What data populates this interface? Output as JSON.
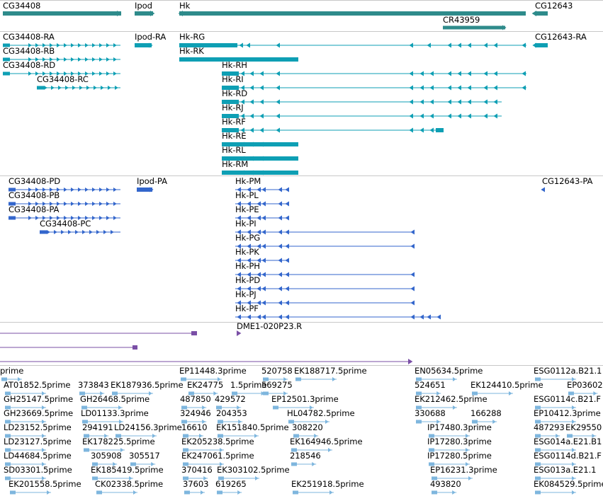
{
  "colors": {
    "gene": "#2e8b8b",
    "rna": "#0e9fb4",
    "protein": "#3366cc",
    "clone": "#7a4fa6",
    "est": "#7eb6de",
    "separator": "#c8c8c8"
  },
  "tracks": {
    "genes": [
      {
        "name": "CG34408",
        "label": "CG34408"
      },
      {
        "name": "Ipod",
        "label": "Ipod"
      },
      {
        "name": "Hk",
        "label": "Hk"
      },
      {
        "name": "CG12643",
        "label": "CG12643"
      },
      {
        "name": "CR43959",
        "label": "CR43959"
      }
    ],
    "transcripts": [
      {
        "label": "CG34408-RA"
      },
      {
        "label": "CG34408-RB"
      },
      {
        "label": "CG34408-RD"
      },
      {
        "label": "CG34408-RC"
      },
      {
        "label": "Ipod-RA"
      },
      {
        "label": "Hk-RG"
      },
      {
        "label": "Hk-RK"
      },
      {
        "label": "Hk-RH"
      },
      {
        "label": "Hk-RI"
      },
      {
        "label": "Hk-RD"
      },
      {
        "label": "Hk-RJ"
      },
      {
        "label": "Hk-RF"
      },
      {
        "label": "Hk-RE"
      },
      {
        "label": "Hk-RL"
      },
      {
        "label": "Hk-RM"
      },
      {
        "label": "CG12643-RA"
      }
    ],
    "proteins": [
      {
        "label": "CG34408-PD"
      },
      {
        "label": "CG34408-PB"
      },
      {
        "label": "CG34408-PA"
      },
      {
        "label": "CG34408-PC"
      },
      {
        "label": "Ipod-PA"
      },
      {
        "label": "Hk-PM"
      },
      {
        "label": "Hk-PL"
      },
      {
        "label": "Hk-PE"
      },
      {
        "label": "Hk-PI"
      },
      {
        "label": "Hk-PG"
      },
      {
        "label": "Hk-PK"
      },
      {
        "label": "Hk-PH"
      },
      {
        "label": "Hk-PD"
      },
      {
        "label": "Hk-PJ"
      },
      {
        "label": "Hk-PF"
      },
      {
        "label": "CG12643-PA"
      }
    ],
    "clones": [
      {
        "label": "DME1-020P23.R"
      }
    ],
    "ests": [
      "prime",
      "EP11448.3prime",
      "520758",
      "EK188717.5prime",
      "EN05634.5prime",
      "ESG0112a.B21.1",
      "AT01852.5prime",
      "373843",
      "EK187936.5prime",
      "EK24775",
      "1.5prime",
      "569275",
      "524651",
      "EK124410.5prime",
      "EP03602",
      "GH25147.5prime",
      "GH26468.5prime",
      "487850",
      "429572",
      "EP12501.3prime",
      "EK212462.5prime",
      "ESG0114c.B21.F",
      "GH23669.5prime",
      "LD01133.3prime",
      "324946",
      "204353",
      "HL04782.5prime",
      "330688",
      "166288",
      "EP10412.3prime",
      "LD23152.5prime",
      "294191",
      "LD24156.3prime",
      "16610",
      "EK151840.5prime",
      "308220",
      "IP17480.3prime",
      "487293",
      "EK29550",
      "LD23127.5prime",
      "EK178225.5prime",
      "EK205238.5prime",
      "EK164946.5prime",
      "IP17280.3prime",
      "ESG014a.E21.B1",
      "LD44684.5prime",
      "305908",
      "305517",
      "EK247061.5prime",
      "218546",
      "IP17280.5prime",
      "ESG0114d.B21.F",
      "SD03301.5prime",
      "EK185419.5prime",
      "370416",
      "EK303102.5prime",
      "EP16231.3prime",
      "ESG013a.E21.1",
      "EK201558.5prime",
      "CK02338.5prime",
      "37603",
      "619265",
      "EK251918.5prime",
      "493820",
      "EK084529.5prime"
    ]
  }
}
